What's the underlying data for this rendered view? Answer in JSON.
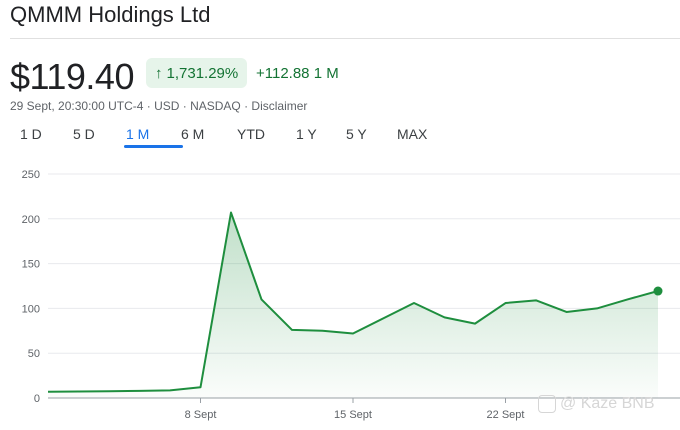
{
  "header": {
    "title": "QMMM Holdings Ltd"
  },
  "quote": {
    "price": "$119.40",
    "percent_change": "1,731.29%",
    "abs_change": "+112.88 1 M",
    "meta": "29 Sept, 20:30:00 UTC-4 · USD · NASDAQ · Disclaimer"
  },
  "tabs": [
    {
      "label": "1 D"
    },
    {
      "label": "5 D"
    },
    {
      "label": "1 M",
      "active": true
    },
    {
      "label": "6 M"
    },
    {
      "label": "YTD"
    },
    {
      "label": "1 Y"
    },
    {
      "label": "5 Y"
    },
    {
      "label": "MAX"
    }
  ],
  "colors": {
    "positive": "#137333",
    "line": "#1e8e3e",
    "accent": "#1a73e8"
  },
  "watermark": "@ Kaze BNB",
  "chart_data": {
    "type": "area",
    "title": "",
    "xlabel": "",
    "ylabel": "",
    "ylim": [
      0,
      250
    ],
    "y_ticks": [
      0,
      50,
      100,
      150,
      200,
      250
    ],
    "x_tick_labels": [
      "8 Sept",
      "15 Sept",
      "22 Sept"
    ],
    "x": [
      "29 Aug",
      "2 Sept",
      "3 Sept",
      "4 Sept",
      "5 Sept",
      "8 Sept",
      "9 Sept",
      "10 Sept",
      "11 Sept",
      "12 Sept",
      "15 Sept",
      "16 Sept",
      "17 Sept",
      "18 Sept",
      "19 Sept",
      "22 Sept",
      "23 Sept",
      "24 Sept",
      "25 Sept",
      "26 Sept",
      "29 Sept"
    ],
    "series": [
      {
        "values": [
          7,
          7.3,
          7.6,
          8,
          8.5,
          12,
          207,
          110,
          76,
          75,
          72,
          89,
          106,
          90,
          83,
          106,
          109,
          96,
          100,
          110,
          119.4
        ]
      }
    ],
    "grid": true,
    "legend": "none"
  }
}
